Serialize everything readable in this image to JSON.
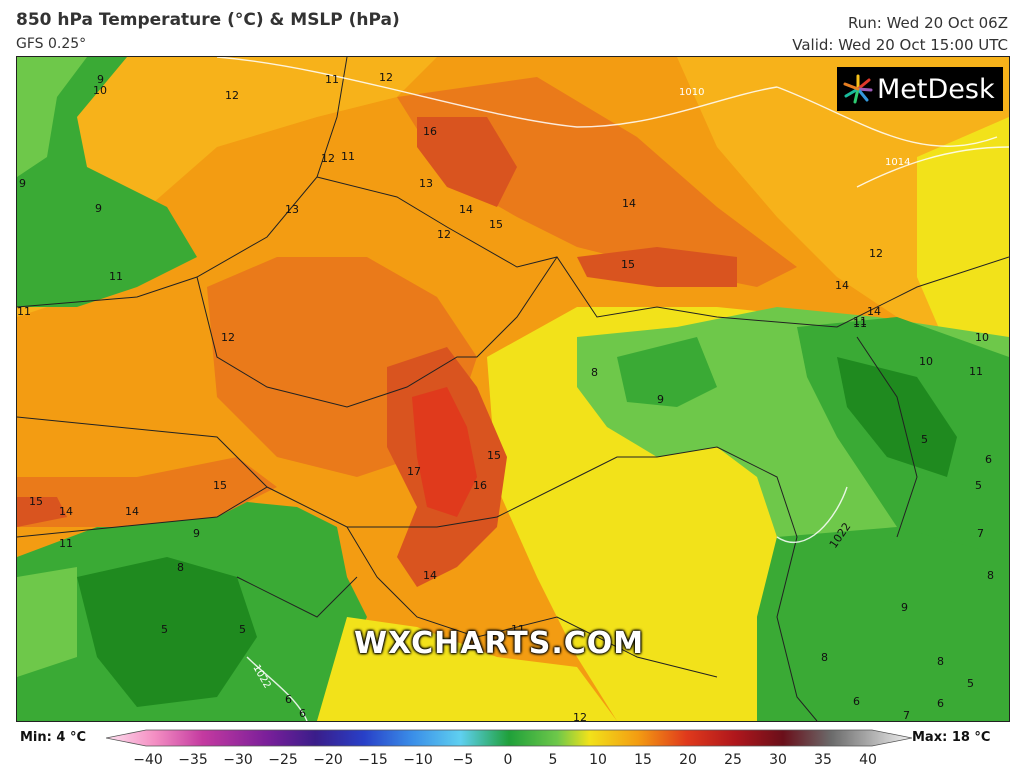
{
  "header": {
    "title": "850 hPa Temperature (°C) & MSLP (hPa)",
    "model": "GFS 0.25°",
    "run": "Run: Wed 20 Oct 06Z",
    "valid": "Valid: Wed 20 Oct 15:00 UTC"
  },
  "logo": "MetDesk",
  "watermark": "WXCHARTS.COM",
  "colorbar": {
    "min_label": "Min: 4 °C",
    "max_label": "Max: 18 °C",
    "ticks": [
      "−40",
      "−35",
      "−30",
      "−25",
      "−20",
      "−15",
      "−10",
      "−5",
      "0",
      "5",
      "10",
      "15",
      "20",
      "25",
      "30",
      "35",
      "40"
    ]
  },
  "map": {
    "colors": {
      "green_dark": "#1f8a1f",
      "green": "#3aaa35",
      "green_light": "#6ec84a",
      "yellow": "#f2e21a",
      "yellow_orange": "#f7c21a",
      "orange": "#f39c12",
      "orange_dark": "#ea7a1a",
      "red_orange": "#d9541f",
      "red": "#e03a1c"
    },
    "temp_labels": [
      "9",
      "10",
      "12",
      "11",
      "12",
      "16",
      "12",
      "11",
      "9",
      "13",
      "9",
      "13",
      "14",
      "15",
      "12",
      "14",
      "15",
      "12",
      "11",
      "11",
      "14",
      "14",
      "11",
      "12",
      "10",
      "10",
      "11",
      "8",
      "9",
      "15",
      "17",
      "16",
      "15",
      "14",
      "15",
      "14",
      "11",
      "9",
      "8",
      "5",
      "5",
      "14",
      "11",
      "5",
      "6",
      "5",
      "7",
      "8",
      "1022",
      "9",
      "8",
      "8",
      "6",
      "6",
      "7",
      "6",
      "5",
      "6",
      "12",
      "11",
      "1010",
      "1014",
      "1022"
    ]
  }
}
